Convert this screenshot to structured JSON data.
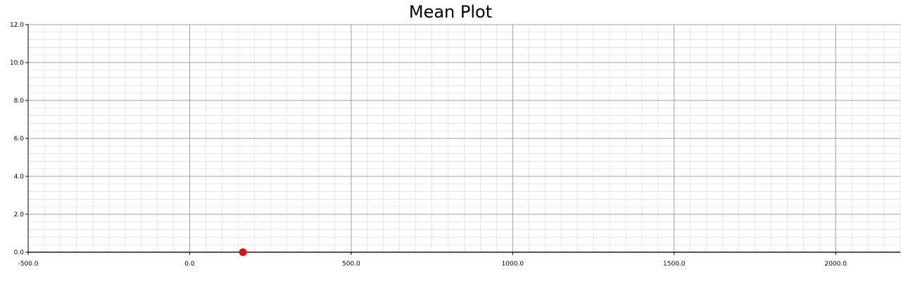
{
  "chart_data": {
    "type": "line",
    "title": "Mean Plot",
    "xlabel": "",
    "ylabel": "",
    "xlim": [
      -500,
      2200
    ],
    "ylim": [
      0,
      12
    ],
    "x_major_ticks": [
      -500,
      0,
      500,
      1000,
      1500,
      2000
    ],
    "x_tick_labels": [
      "-500.0",
      "0.0",
      "500.0",
      "1000.0",
      "1500.0",
      "2000.0"
    ],
    "y_major_ticks": [
      0,
      2,
      4,
      6,
      8,
      10,
      12
    ],
    "y_tick_labels": [
      "0.0",
      "2.0",
      "4.0",
      "6.0",
      "8.0",
      "10.0",
      "12.0"
    ],
    "x_minor_step": 50,
    "y_minor_step": 0.4,
    "grid": true,
    "series": [
      {
        "x": [
          -500,
          2200
        ],
        "y": [
          0,
          0
        ],
        "color": "#008000"
      }
    ],
    "markers": [
      {
        "x": 165,
        "y": 0,
        "color": "#ff0000"
      }
    ]
  }
}
